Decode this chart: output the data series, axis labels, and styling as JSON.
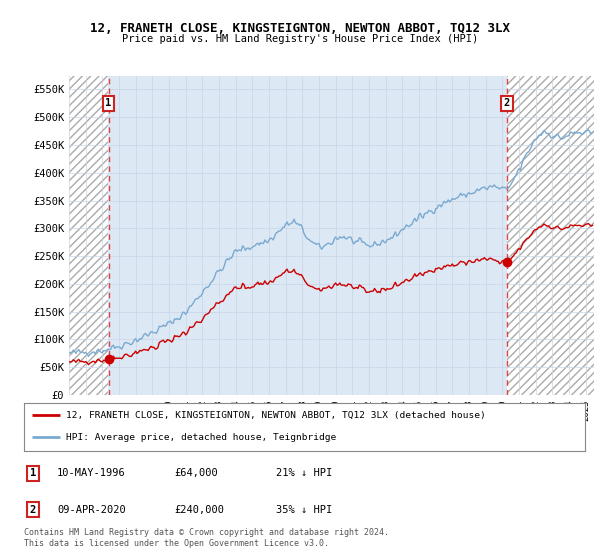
{
  "title": "12, FRANETH CLOSE, KINGSTEIGNTON, NEWTON ABBOT, TQ12 3LX",
  "subtitle": "Price paid vs. HM Land Registry's House Price Index (HPI)",
  "ylabel_ticks": [
    "£0",
    "£50K",
    "£100K",
    "£150K",
    "£200K",
    "£250K",
    "£300K",
    "£350K",
    "£400K",
    "£450K",
    "£500K",
    "£550K"
  ],
  "ytick_values": [
    0,
    50000,
    100000,
    150000,
    200000,
    250000,
    300000,
    350000,
    400000,
    450000,
    500000,
    550000
  ],
  "ylim": [
    0,
    575000
  ],
  "sale1_date": "10-MAY-1996",
  "sale1_price": 64000,
  "sale1_pct": "21% ↓ HPI",
  "sale1_x": 1996.37,
  "sale2_date": "09-APR-2020",
  "sale2_price": 240000,
  "sale2_pct": "35% ↓ HPI",
  "sale2_x": 2020.27,
  "legend_property": "12, FRANETH CLOSE, KINGSTEIGNTON, NEWTON ABBOT, TQ12 3LX (detached house)",
  "legend_hpi": "HPI: Average price, detached house, Teignbridge",
  "footer": "Contains HM Land Registry data © Crown copyright and database right 2024.\nThis data is licensed under the Open Government Licence v3.0.",
  "property_color": "#cc0000",
  "hpi_color": "#7aaad0",
  "grid_color": "#c8d4e8",
  "bg_color": "#dde8f5",
  "xmin": 1994.0,
  "xmax": 2025.5
}
